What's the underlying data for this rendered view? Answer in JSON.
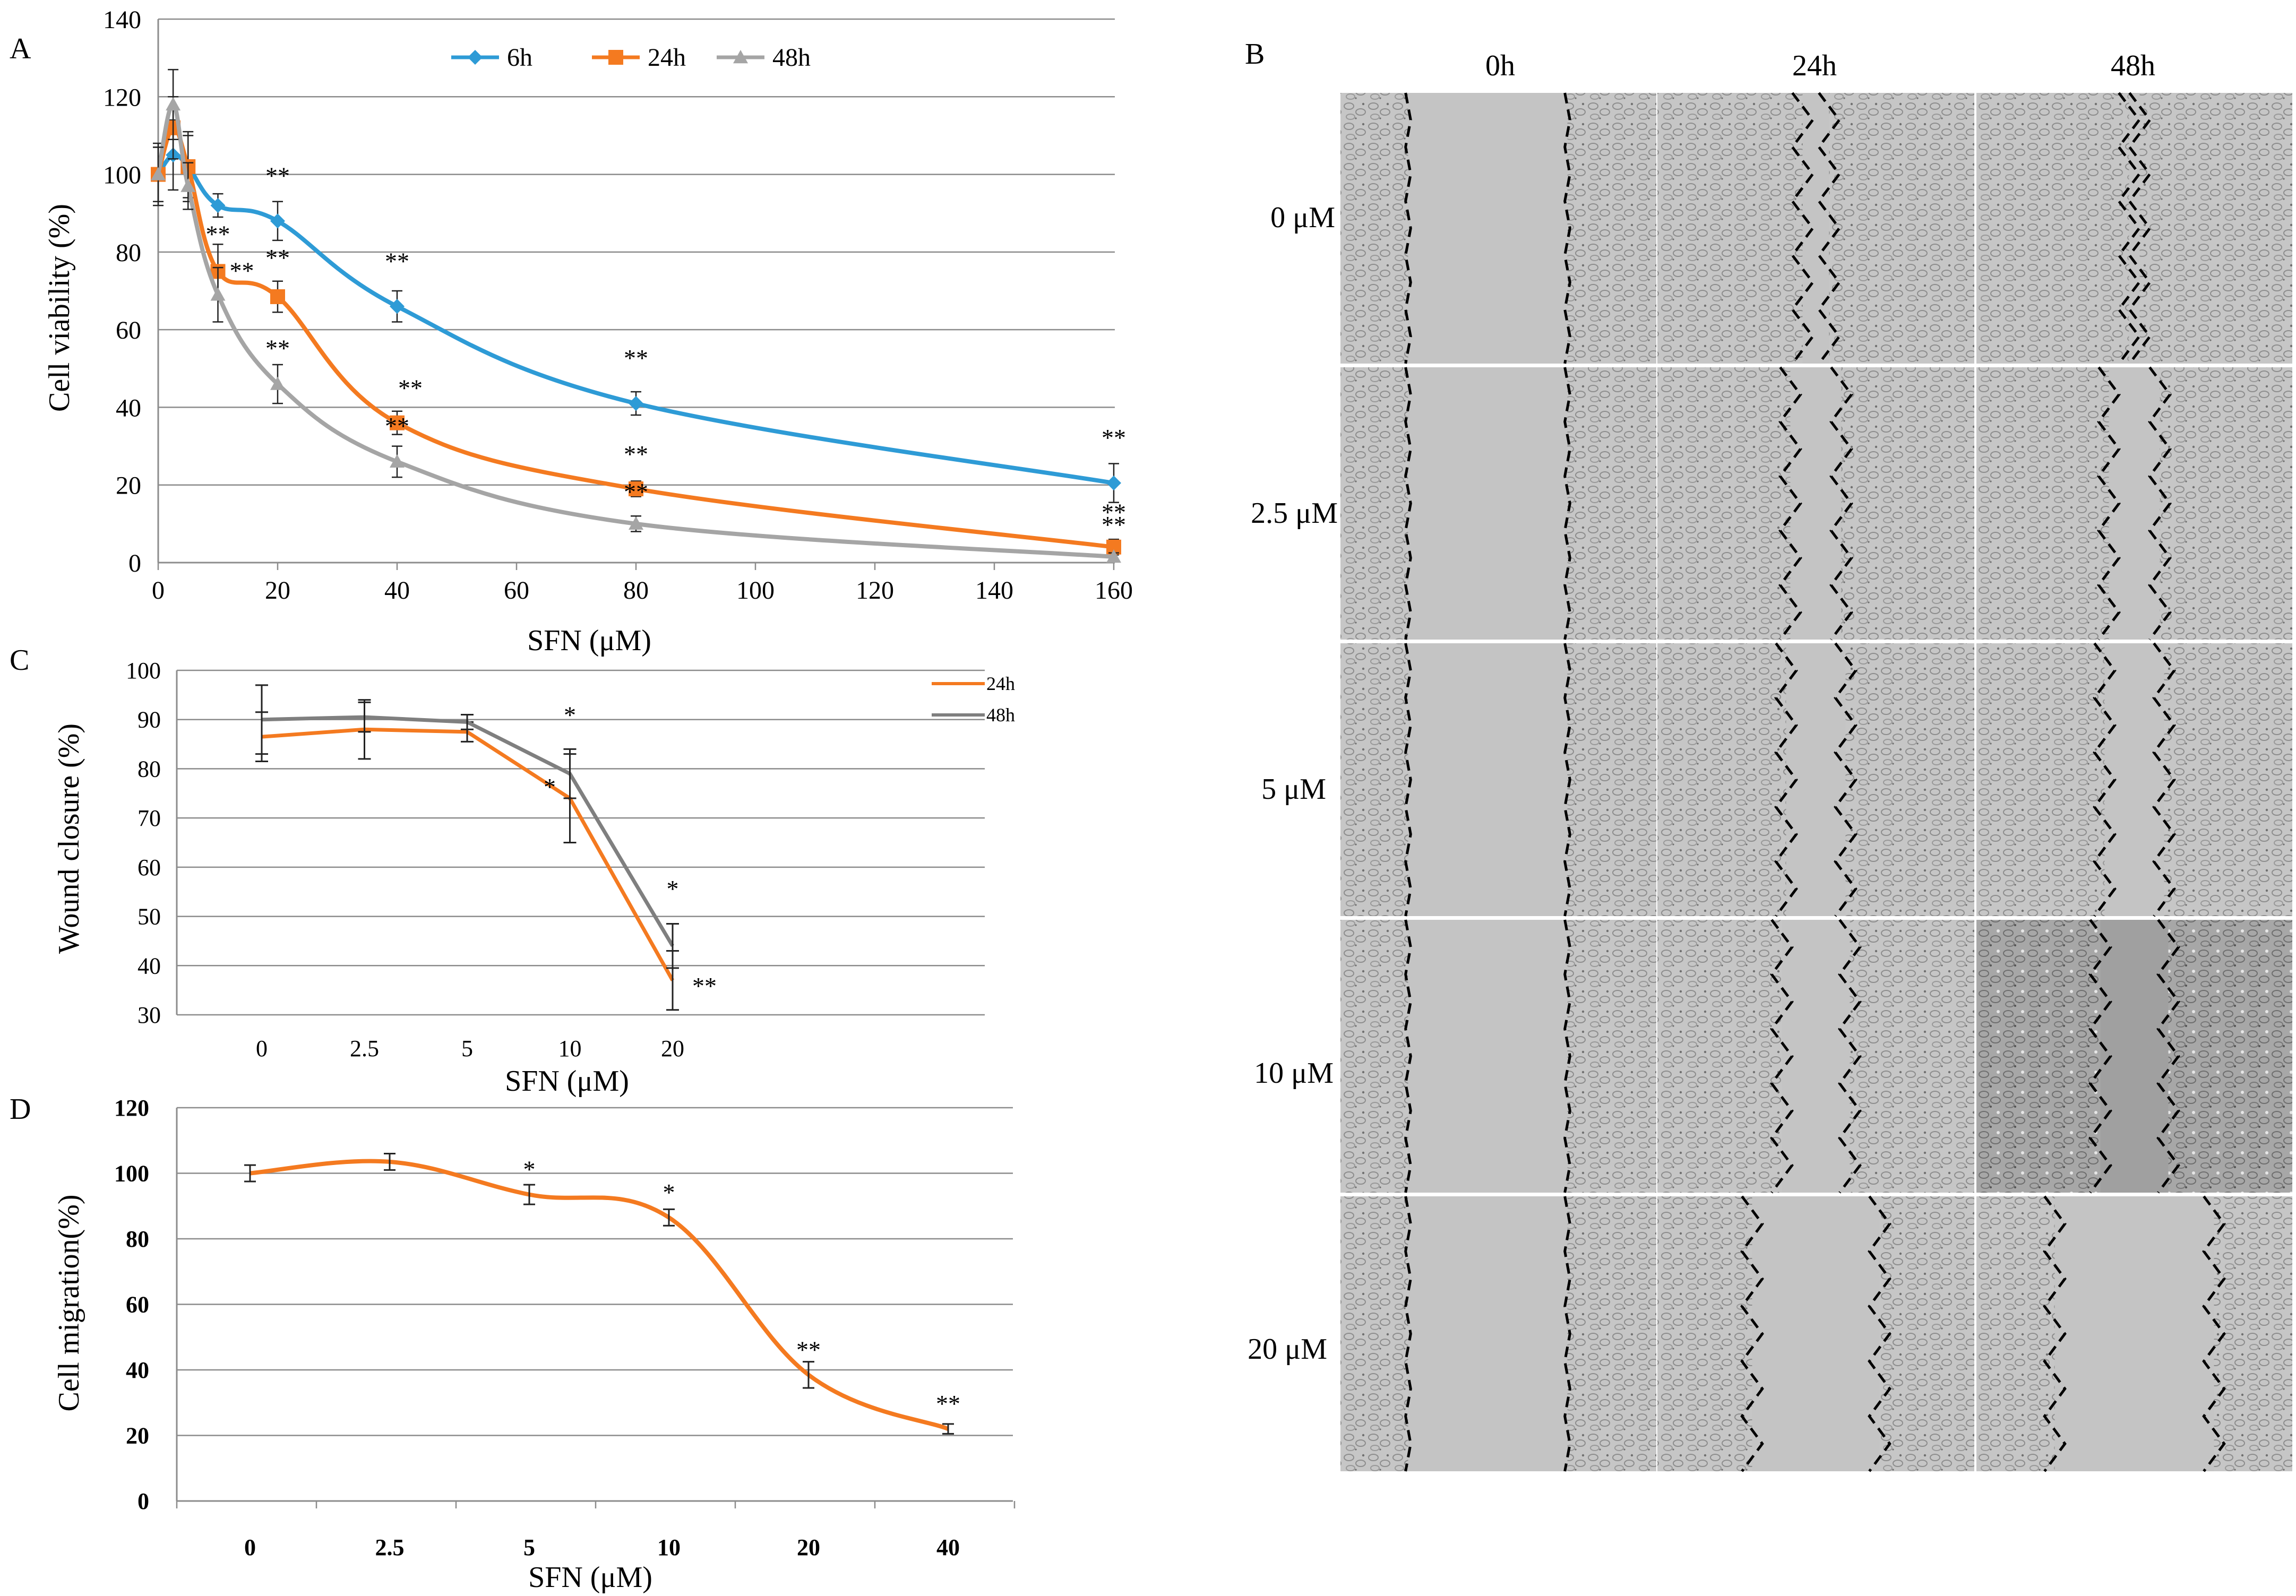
{
  "colors": {
    "blue": "#2E9BD6",
    "orange": "#F47A20",
    "gray": "#A5A5A5",
    "darkgray": "#7F7F7F",
    "grid": "#8C8C8C",
    "panel_border": "#ffffff",
    "micro_base": "#B9B9B9"
  },
  "chart_data": [
    {
      "panel": "A",
      "type": "line",
      "ylabel": "Cell  viability (%)",
      "xlabel": "SFN (μM)",
      "xlim": [
        0,
        160
      ],
      "ylim": [
        0,
        140
      ],
      "yticks": [
        0,
        20,
        40,
        60,
        80,
        100,
        120,
        140
      ],
      "xticks": [
        0,
        20,
        40,
        60,
        80,
        100,
        120,
        140,
        160
      ],
      "x": [
        0,
        2.5,
        5,
        10,
        20,
        40,
        80,
        160
      ],
      "series": [
        {
          "name": "6h",
          "color": "blue",
          "marker": "diamond",
          "values": [
            100,
            105,
            102,
            92,
            88,
            66,
            41,
            20.5
          ],
          "errors": [
            8,
            9,
            8,
            3,
            5,
            4,
            3,
            5
          ],
          "labels": [
            "",
            "",
            "",
            "",
            "**",
            "**",
            "**",
            "**"
          ]
        },
        {
          "name": "24h",
          "color": "orange",
          "marker": "square",
          "values": [
            100,
            112,
            102,
            75,
            68.5,
            36,
            19,
            4
          ],
          "errors": [
            7,
            8,
            9,
            7,
            4,
            3,
            2,
            2
          ],
          "labels": [
            "",
            "",
            "",
            "**",
            "**",
            "**",
            "**",
            "**"
          ]
        },
        {
          "name": "48h",
          "color": "gray",
          "marker": "triangle",
          "values": [
            100,
            118,
            97,
            69,
            46,
            26,
            10,
            1.5
          ],
          "errors": [
            7,
            9,
            6,
            7,
            5,
            4,
            2,
            1
          ],
          "labels": [
            "",
            "",
            "",
            "**",
            "**",
            "**",
            "**",
            "**"
          ]
        }
      ]
    },
    {
      "panel": "C",
      "type": "line",
      "ylabel": "Wound  closure (%)",
      "xlabel": "SFN (μM)",
      "categories": [
        "0",
        "2.5",
        "5",
        "10",
        "20"
      ],
      "ylim": [
        30,
        100
      ],
      "yticks": [
        30,
        40,
        50,
        60,
        70,
        80,
        90,
        100
      ],
      "series": [
        {
          "name": "24h",
          "color": "orange",
          "values": [
            86.5,
            88,
            87.5,
            74,
            37
          ],
          "errors": [
            5,
            6,
            2,
            9,
            6
          ],
          "labels": [
            "",
            "",
            "",
            "*",
            "**"
          ]
        },
        {
          "name": "48h",
          "color": "darkgray",
          "values": [
            90,
            90.5,
            89.5,
            79,
            44
          ],
          "errors": [
            7,
            3,
            1.5,
            5,
            4.5
          ],
          "labels": [
            "",
            "",
            "",
            "*",
            "*"
          ]
        }
      ]
    },
    {
      "panel": "D",
      "type": "line",
      "ylabel": "Cell  migration(%)",
      "xlabel": "SFN (μM)",
      "categories": [
        "0",
        "2.5",
        "5",
        "10",
        "20",
        "40"
      ],
      "ylim": [
        0,
        120
      ],
      "yticks": [
        0,
        20,
        40,
        60,
        80,
        100,
        120
      ],
      "series": [
        {
          "name": "migration",
          "color": "orange",
          "values": [
            100,
            103.5,
            93.5,
            86.5,
            38.5,
            22
          ],
          "errors": [
            2.5,
            2.5,
            3,
            2.5,
            4,
            1.5
          ],
          "labels": [
            "",
            "",
            "*",
            "*",
            "**",
            "**"
          ]
        }
      ]
    }
  ],
  "panel_labels": {
    "a": "A",
    "b": "B",
    "c": "C",
    "d": "D"
  },
  "micrographs": {
    "columns": [
      "0h",
      "24h",
      "48h"
    ],
    "rows": [
      "0 μM",
      "2.5 μM",
      "5 μM",
      "10 μM",
      "20 μM"
    ]
  }
}
